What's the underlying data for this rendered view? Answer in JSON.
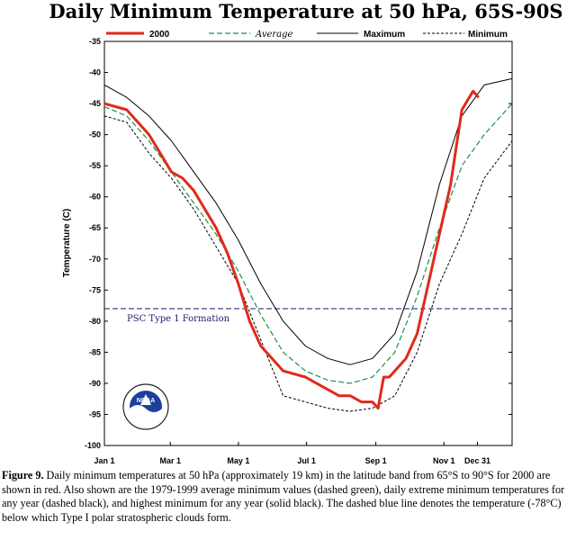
{
  "chart_data": {
    "type": "line",
    "title": "Daily Minimum Temperature at 50 hPa, 65S-90S",
    "ylabel": "Temperature (C)",
    "xlabel": "",
    "ylim": [
      -100,
      -35
    ],
    "xlim": [
      0,
      365
    ],
    "y_ticks": [
      -35,
      -40,
      -45,
      -50,
      -55,
      -60,
      -65,
      -70,
      -75,
      -80,
      -85,
      -90,
      -95,
      -100
    ],
    "x_ticks": [
      {
        "day": 0,
        "label": "Jan 1"
      },
      {
        "day": 59,
        "label": "Mar 1"
      },
      {
        "day": 120,
        "label": "May 1"
      },
      {
        "day": 181,
        "label": "Jul 1"
      },
      {
        "day": 243,
        "label": "Sep 1"
      },
      {
        "day": 304,
        "label": "Nov 1"
      },
      {
        "day": 334,
        "label": "Dec 31"
      }
    ],
    "legend": [
      "2000",
      "Average",
      "Maximum",
      "Minimum"
    ],
    "annotation": {
      "text": "PSC Type 1 Formation",
      "value": -78
    },
    "series": [
      {
        "name": "2000",
        "color": "#e02a1a",
        "style": "solid-thick",
        "x": [
          0,
          10,
          20,
          30,
          40,
          50,
          60,
          70,
          80,
          90,
          100,
          110,
          120,
          125,
          130,
          140,
          150,
          160,
          170,
          180,
          190,
          200,
          210,
          220,
          230,
          240,
          245,
          250,
          255,
          260,
          270,
          280,
          290,
          300,
          310,
          320,
          330,
          335
        ],
        "y": [
          -45,
          -45.5,
          -46,
          -48,
          -50,
          -53,
          -56,
          -57,
          -59,
          -62,
          -65,
          -69,
          -74,
          -77,
          -80,
          -84,
          -86,
          -88,
          -88.5,
          -89,
          -90,
          -91,
          -92,
          -92,
          -93,
          -93,
          -94,
          -89,
          -89,
          -88,
          -86,
          -82,
          -74,
          -66,
          -58,
          -46,
          -43,
          -44
        ]
      },
      {
        "name": "Average",
        "color": "#1f8f4a",
        "style": "dashed",
        "x": [
          0,
          20,
          40,
          60,
          80,
          100,
          120,
          140,
          160,
          180,
          200,
          220,
          240,
          260,
          280,
          300,
          320,
          340,
          365
        ],
        "y": [
          -45.5,
          -47,
          -51,
          -56,
          -61,
          -66,
          -72,
          -79,
          -85,
          -88,
          -89.5,
          -90,
          -89,
          -85,
          -76,
          -65,
          -55,
          -50,
          -45
        ]
      },
      {
        "name": "Maximum",
        "color": "#000000",
        "style": "solid",
        "x": [
          0,
          20,
          40,
          60,
          80,
          100,
          120,
          140,
          160,
          180,
          200,
          220,
          240,
          260,
          280,
          300,
          320,
          340,
          365
        ],
        "y": [
          -42,
          -44,
          -47,
          -51,
          -56,
          -61,
          -67,
          -74,
          -80,
          -84,
          -86,
          -87,
          -86,
          -82,
          -72,
          -58,
          -47,
          -42,
          -41
        ]
      },
      {
        "name": "Minimum",
        "color": "#000000",
        "style": "dashed",
        "x": [
          0,
          20,
          40,
          60,
          80,
          100,
          120,
          140,
          160,
          180,
          200,
          220,
          240,
          260,
          280,
          300,
          320,
          340,
          365
        ],
        "y": [
          -47,
          -48,
          -53,
          -57,
          -62,
          -68,
          -74,
          -83,
          -92,
          -93,
          -94,
          -94.5,
          -94,
          -92,
          -85,
          -74,
          -66,
          -57,
          -51
        ]
      }
    ]
  },
  "logo": {
    "text": "NOAA"
  },
  "caption": {
    "label": "Figure 9.",
    "text": " Daily minimum temperatures at 50 hPa (approximately 19 km) in the latitude band from 65°S to 90°S for 2000 are shown in red. Also shown are the 1979-1999 average minimum values (dashed green), daily extreme minimum temperatures for any year (dashed black), and highest minimum for any year (solid black). The dashed blue line denotes the temperature (-78°C) below which Type I polar stratospheric clouds form."
  }
}
